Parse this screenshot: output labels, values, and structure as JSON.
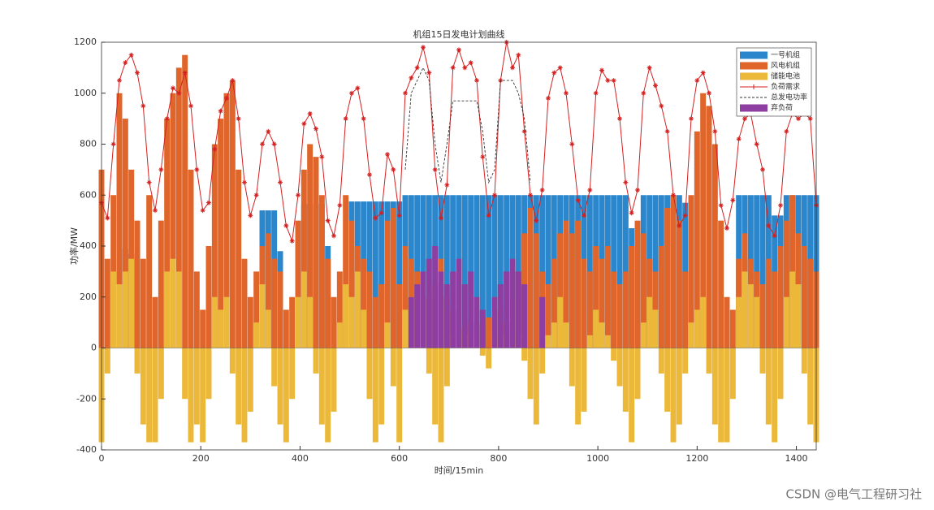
{
  "chart_data": {
    "type": "bar",
    "title": "机组15日发电计划曲线",
    "xlabel": "时间/15min",
    "ylabel": "功率/MW",
    "xlim": [
      0,
      1440
    ],
    "ylim": [
      -400,
      1200
    ],
    "xticks": [
      0,
      200,
      400,
      600,
      800,
      1000,
      1200,
      1400
    ],
    "yticks": [
      -400,
      -200,
      0,
      200,
      400,
      600,
      800,
      1000,
      1200
    ],
    "legend": "top-right",
    "x": [
      0,
      12,
      24,
      36,
      48,
      60,
      72,
      84,
      96,
      108,
      120,
      132,
      144,
      156,
      168,
      180,
      192,
      204,
      216,
      228,
      240,
      252,
      264,
      276,
      288,
      300,
      312,
      324,
      336,
      348,
      360,
      372,
      384,
      396,
      408,
      420,
      432,
      444,
      456,
      468,
      480,
      492,
      504,
      516,
      528,
      540,
      552,
      564,
      576,
      588,
      600,
      612,
      624,
      636,
      648,
      660,
      672,
      684,
      696,
      708,
      720,
      732,
      744,
      756,
      768,
      780,
      792,
      804,
      816,
      828,
      840,
      852,
      864,
      876,
      888,
      900,
      912,
      924,
      936,
      948,
      960,
      972,
      984,
      996,
      1008,
      1020,
      1032,
      1044,
      1056,
      1068,
      1080,
      1092,
      1104,
      1116,
      1128,
      1140,
      1152,
      1164,
      1176,
      1188,
      1200,
      1212,
      1224,
      1236,
      1248,
      1260,
      1272,
      1284,
      1296,
      1308,
      1320,
      1332,
      1344,
      1356,
      1368,
      1380,
      1392,
      1404,
      1416,
      1428,
      1440
    ],
    "series": [
      {
        "name": "一号机组",
        "type": "bar",
        "color": "#2b86cc",
        "values": [
          0,
          0,
          0,
          0,
          390,
          370,
          400,
          0,
          0,
          0,
          0,
          0,
          0,
          0,
          0,
          0,
          0,
          0,
          0,
          0,
          0,
          0,
          0,
          0,
          0,
          0,
          0,
          540,
          540,
          540,
          380,
          0,
          0,
          0,
          565,
          565,
          565,
          565,
          400,
          0,
          0,
          0,
          575,
          575,
          575,
          575,
          575,
          575,
          575,
          575,
          575,
          600,
          600,
          600,
          600,
          600,
          600,
          600,
          600,
          600,
          600,
          600,
          600,
          600,
          600,
          600,
          600,
          600,
          600,
          600,
          600,
          600,
          600,
          600,
          600,
          600,
          600,
          600,
          600,
          600,
          600,
          600,
          600,
          600,
          600,
          600,
          600,
          600,
          600,
          470,
          470,
          600,
          600,
          600,
          600,
          600,
          600,
          600,
          570,
          570,
          0,
          0,
          0,
          0,
          0,
          0,
          0,
          600,
          600,
          600,
          600,
          600,
          600,
          520,
          520,
          600,
          600,
          600,
          600,
          600,
          600
        ]
      },
      {
        "name": "风电机组",
        "type": "bar",
        "color": "#e0652a",
        "values": [
          700,
          350,
          600,
          1000,
          900,
          700,
          500,
          350,
          600,
          200,
          500,
          900,
          1000,
          1100,
          1150,
          700,
          300,
          150,
          400,
          800,
          900,
          1000,
          1050,
          700,
          350,
          200,
          300,
          400,
          450,
          350,
          300,
          150,
          200,
          500,
          700,
          800,
          750,
          600,
          350,
          200,
          300,
          600,
          500,
          400,
          350,
          300,
          200,
          250,
          500,
          550,
          250,
          400,
          350,
          300,
          250,
          200,
          250,
          350,
          200,
          150,
          100,
          80,
          100,
          80,
          100,
          120,
          200,
          150,
          100,
          200,
          300,
          450,
          550,
          450,
          300,
          250,
          350,
          450,
          500,
          450,
          500,
          350,
          300,
          400,
          350,
          400,
          300,
          250,
          300,
          400,
          500,
          450,
          350,
          300,
          400,
          550,
          600,
          500,
          300,
          600,
          850,
          1000,
          950,
          800,
          500,
          200,
          150,
          350,
          450,
          350,
          300,
          250,
          350,
          300,
          400,
          500,
          600,
          450,
          400,
          350,
          300
        ]
      },
      {
        "name": "储能电池",
        "type": "bar",
        "color": "#ecb83a",
        "values": [
          -370,
          -100,
          300,
          250,
          300,
          350,
          -100,
          -300,
          -370,
          -370,
          -200,
          300,
          350,
          300,
          -200,
          -370,
          -300,
          -370,
          -200,
          200,
          150,
          200,
          -100,
          -300,
          -370,
          -250,
          100,
          250,
          150,
          -150,
          -300,
          -370,
          -200,
          200,
          300,
          200,
          -100,
          -300,
          -370,
          -250,
          100,
          250,
          200,
          300,
          150,
          -200,
          -370,
          -300,
          100,
          -150,
          -370,
          150,
          200,
          250,
          100,
          -100,
          -300,
          -370,
          -150,
          50,
          50,
          50,
          60,
          50,
          -30,
          -80,
          50,
          50,
          50,
          60,
          50,
          -50,
          -200,
          -300,
          -100,
          50,
          100,
          200,
          100,
          -150,
          -300,
          -250,
          50,
          150,
          100,
          50,
          -50,
          -150,
          -250,
          -370,
          -200,
          100,
          200,
          150,
          -100,
          -250,
          -370,
          -300,
          -100,
          100,
          150,
          200,
          -100,
          -300,
          -370,
          -370,
          -200,
          200,
          300,
          250,
          200,
          -100,
          -300,
          -370,
          -200,
          200,
          300,
          250,
          -100,
          -300,
          -370
        ]
      },
      {
        "name": "负荷需求",
        "type": "line",
        "marker": "star",
        "color": "#d42020",
        "values": [
          570,
          510,
          800,
          1050,
          1120,
          1150,
          1080,
          950,
          650,
          540,
          700,
          900,
          1020,
          1000,
          1080,
          950,
          700,
          540,
          570,
          780,
          930,
          980,
          1050,
          900,
          650,
          520,
          600,
          800,
          850,
          800,
          650,
          480,
          420,
          600,
          880,
          920,
          860,
          750,
          500,
          440,
          560,
          900,
          1000,
          1020,
          900,
          680,
          510,
          530,
          760,
          700,
          520,
          1000,
          1060,
          1100,
          1180,
          1080,
          700,
          510,
          640,
          1100,
          1170,
          1100,
          1120,
          1050,
          750,
          520,
          600,
          1050,
          1200,
          1100,
          1150,
          850,
          600,
          500,
          620,
          980,
          1080,
          1100,
          1000,
          800,
          580,
          520,
          620,
          1000,
          1090,
          1050,
          1050,
          900,
          650,
          530,
          620,
          1000,
          1100,
          1030,
          950,
          850,
          600,
          480,
          520,
          900,
          1050,
          1080,
          1000,
          850,
          560,
          470,
          580,
          820,
          900,
          920,
          800,
          700,
          480,
          440,
          560,
          850,
          920,
          900,
          920,
          900,
          560
        ]
      },
      {
        "name": "总发电功率",
        "type": "line",
        "dash": true,
        "color": "#333333",
        "values": [
          null,
          null,
          null,
          null,
          null,
          null,
          null,
          null,
          null,
          null,
          null,
          null,
          null,
          null,
          null,
          null,
          null,
          null,
          null,
          null,
          null,
          null,
          null,
          null,
          null,
          null,
          null,
          null,
          null,
          null,
          null,
          null,
          null,
          null,
          null,
          null,
          null,
          null,
          null,
          null,
          null,
          null,
          null,
          null,
          null,
          null,
          null,
          null,
          null,
          null,
          null,
          700,
          1000,
          1050,
          1100,
          1050,
          800,
          650,
          800,
          970,
          970,
          970,
          970,
          970,
          850,
          650,
          700,
          1050,
          1050,
          1050,
          1000,
          900,
          650,
          null,
          null,
          null,
          null,
          null,
          null,
          null,
          null,
          null,
          null,
          null,
          null,
          null,
          null,
          null,
          null,
          null,
          null,
          null,
          null,
          null,
          null,
          null,
          null,
          null,
          null,
          null,
          null,
          null,
          null,
          null,
          null,
          null,
          null,
          null,
          null,
          null,
          null,
          null,
          null,
          null,
          null,
          null,
          null,
          null,
          null,
          null,
          null
        ]
      },
      {
        "name": "弃负荷",
        "type": "bar",
        "color": "#8e3da0",
        "values": [
          0,
          0,
          0,
          0,
          0,
          0,
          0,
          0,
          0,
          0,
          0,
          0,
          0,
          0,
          0,
          0,
          0,
          0,
          0,
          0,
          0,
          0,
          0,
          0,
          0,
          0,
          0,
          0,
          0,
          0,
          0,
          0,
          0,
          0,
          0,
          0,
          0,
          0,
          0,
          0,
          0,
          0,
          0,
          0,
          0,
          0,
          0,
          0,
          0,
          0,
          0,
          0,
          200,
          250,
          300,
          350,
          400,
          300,
          250,
          300,
          350,
          250,
          300,
          200,
          150,
          0,
          200,
          250,
          300,
          350,
          300,
          250,
          0,
          0,
          200,
          0,
          0,
          0,
          0,
          0,
          0,
          0,
          0,
          0,
          0,
          0,
          0,
          0,
          0,
          0,
          0,
          0,
          0,
          0,
          0,
          0,
          0,
          0,
          0,
          0,
          0,
          0,
          0,
          0,
          0,
          0,
          0,
          0,
          0,
          0,
          0,
          0,
          0,
          0,
          0,
          0,
          0,
          0,
          0,
          0,
          0
        ]
      }
    ]
  },
  "watermark": "CSDN @电气工程研习社"
}
